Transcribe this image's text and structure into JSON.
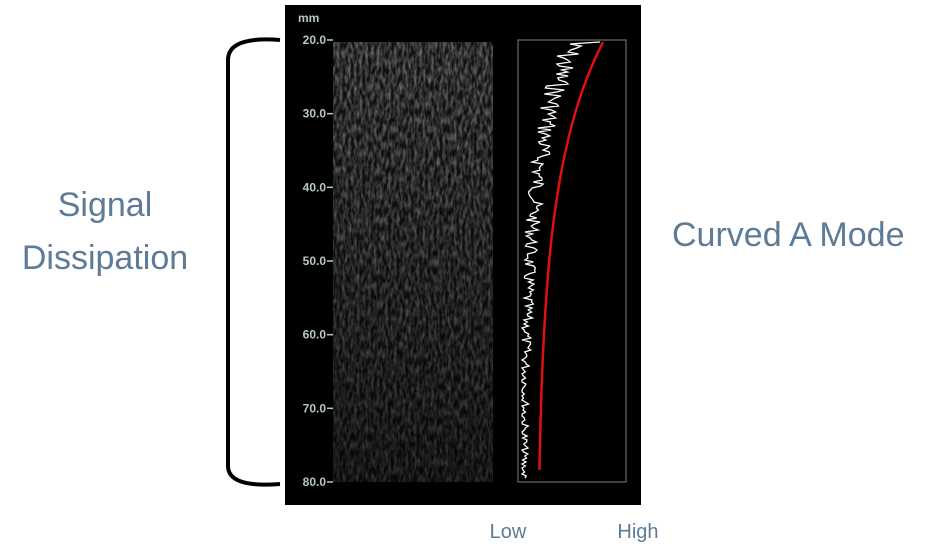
{
  "labels": {
    "left": [
      "Signal",
      "Dissipation"
    ],
    "right": "Curved A Mode"
  },
  "depth_axis": {
    "unit": "mm",
    "ticks": [
      {
        "value": 20,
        "label": "20.0"
      },
      {
        "value": 30,
        "label": "30.0"
      },
      {
        "value": 40,
        "label": "40.0"
      },
      {
        "value": 50,
        "label": "50.0"
      },
      {
        "value": 60,
        "label": "60.0"
      },
      {
        "value": 70,
        "label": "70.0"
      },
      {
        "value": 80,
        "label": "80.0"
      }
    ]
  },
  "amplitude_axis": {
    "low": "Low",
    "high": "High"
  }
}
